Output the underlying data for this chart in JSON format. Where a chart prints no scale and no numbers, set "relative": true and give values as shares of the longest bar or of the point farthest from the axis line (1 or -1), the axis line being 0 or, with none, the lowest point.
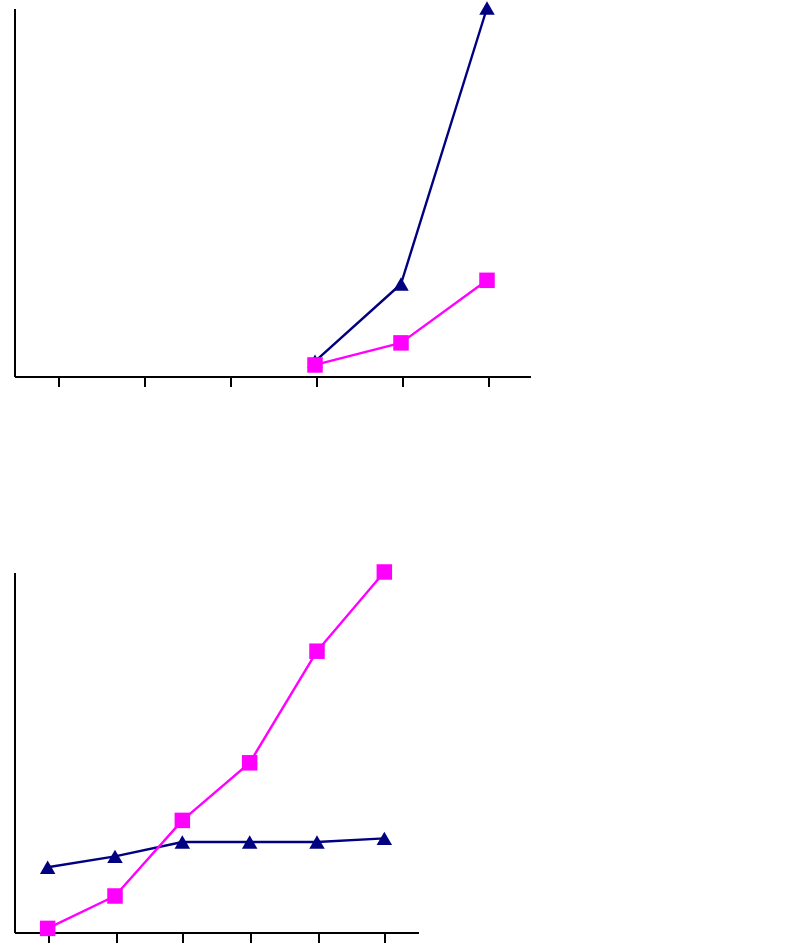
{
  "chart_data": [
    {
      "type": "line",
      "relative": true,
      "categories": [
        null,
        null,
        null,
        null,
        null,
        null
      ],
      "series": [
        {
          "color": "#000080",
          "marker": "triangle",
          "values": [
            null,
            null,
            null,
            0.04,
            0.25,
            1
          ]
        },
        {
          "color": "#ff00ff",
          "marker": "square",
          "values": [
            null,
            null,
            null,
            0.03,
            0.09,
            0.26
          ]
        }
      ]
    },
    {
      "type": "line",
      "relative": true,
      "categories": [
        null,
        null,
        null,
        null,
        null,
        null
      ],
      "series": [
        {
          "color": "#000080",
          "marker": "triangle",
          "values": [
            0.18,
            0.21,
            0.25,
            0.25,
            0.25,
            0.26
          ]
        },
        {
          "color": "#ff00ff",
          "marker": "square",
          "values": [
            0.01,
            0.1,
            0.31,
            0.47,
            0.78,
            1
          ]
        }
      ]
    }
  ]
}
